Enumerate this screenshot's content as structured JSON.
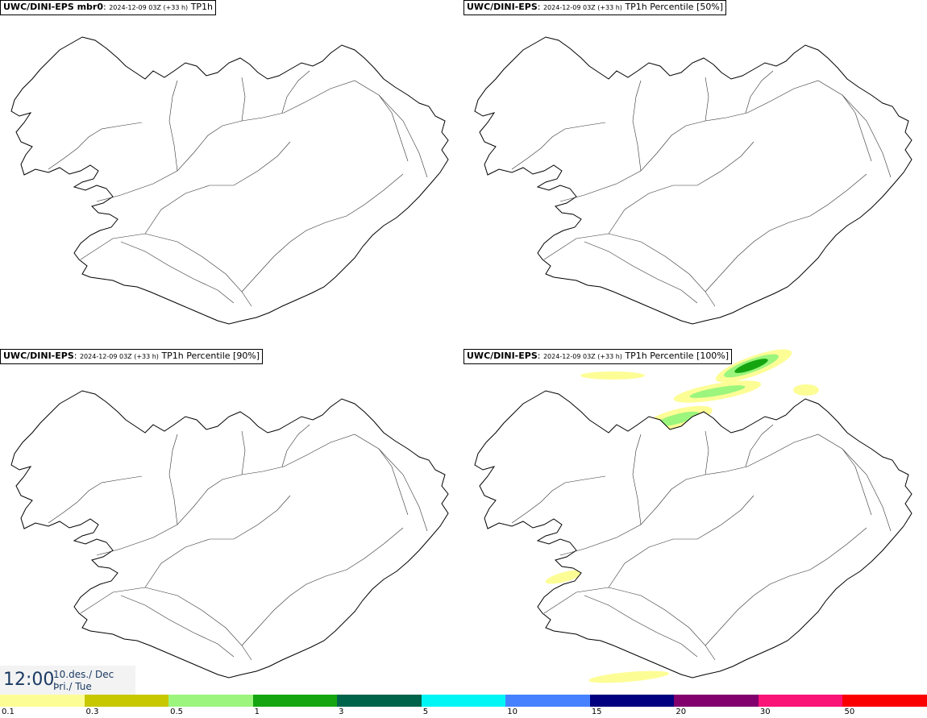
{
  "panels": [
    {
      "model": "UWC/DINI-EPS mbr0",
      "run": "2024-12-09 03Z (+33 h)",
      "field": "TP1h"
    },
    {
      "model": "UWC/DINI-EPS",
      "run": "2024-12-09 03Z (+33 h)",
      "field": "TP1h Percentile [50%]"
    },
    {
      "model": "UWC/DINI-EPS",
      "run": "2024-12-09 03Z (+33 h)",
      "field": "TP1h Percentile [90%]"
    },
    {
      "model": "UWC/DINI-EPS",
      "run": "2024-12-09 03Z (+33 h)",
      "field": "TP1h Percentile [100%]"
    }
  ],
  "valid_time": {
    "time": "12:00",
    "date": "10.des./ Dec",
    "day": "Þri./ Tue"
  },
  "legend": {
    "ticks": [
      "0.1",
      "0.3",
      "0.5",
      "1",
      "3",
      "5",
      "10",
      "15",
      "20",
      "30",
      "50"
    ],
    "colors": [
      "#fdfd96",
      "#c8c800",
      "#9cf57d",
      "#15a510",
      "#00644b",
      "#00f5f5",
      "#4682ff",
      "#000080",
      "#82006e",
      "#fa1478",
      "#fa0000"
    ]
  },
  "map": {
    "coastline_color": "#000000",
    "background": "#ffffff"
  }
}
